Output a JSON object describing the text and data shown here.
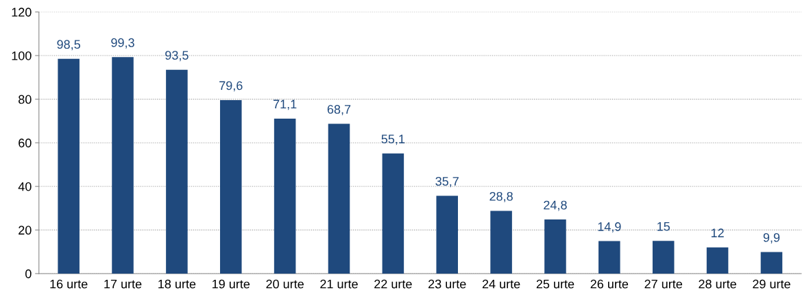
{
  "chart_data": {
    "type": "bar",
    "categories": [
      "16 urte",
      "17 urte",
      "18 urte",
      "19 urte",
      "20 urte",
      "21 urte",
      "22 urte",
      "23 urte",
      "24 urte",
      "25 urte",
      "26 urte",
      "27 urte",
      "28 urte",
      "29 urte"
    ],
    "values": [
      98.5,
      99.3,
      93.5,
      79.6,
      71.1,
      68.7,
      55.1,
      35.7,
      28.8,
      24.8,
      14.9,
      15,
      12,
      9.9
    ],
    "value_labels": [
      "98,5",
      "99,3",
      "93,5",
      "79,6",
      "71,1",
      "68,7",
      "55,1",
      "35,7",
      "28,8",
      "24,8",
      "14,9",
      "15",
      "12",
      "9,9"
    ],
    "color": "#1f497d",
    "ylim": [
      0,
      120
    ],
    "yticks": [
      0,
      20,
      40,
      60,
      80,
      100,
      120
    ],
    "grid": "y"
  }
}
